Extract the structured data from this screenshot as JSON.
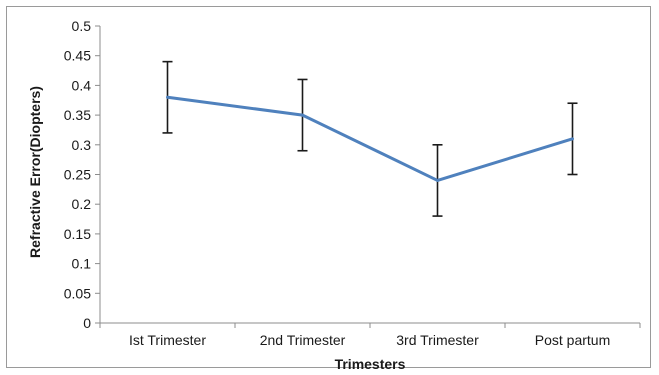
{
  "chart_data": {
    "type": "line",
    "title": "",
    "xlabel": "Trimesters",
    "ylabel": "Refractive Error(Diopters)",
    "categories": [
      "Ist Trimester",
      "2nd Trimester",
      "3rd Trimester",
      "Post partum"
    ],
    "series": [
      {
        "values": [
          0.38,
          0.35,
          0.24,
          0.31
        ],
        "error_low": [
          0.32,
          0.29,
          0.18,
          0.25
        ],
        "error_high": [
          0.44,
          0.41,
          0.3,
          0.37
        ],
        "color": "#4f81bd"
      }
    ],
    "ylim": [
      0,
      0.5
    ],
    "yticks": [
      "0",
      "0.05",
      "0.1",
      "0.15",
      "0.2",
      "0.25",
      "0.3",
      "0.35",
      "0.4",
      "0.45",
      "0.5"
    ],
    "grid": false,
    "legend": "none"
  }
}
